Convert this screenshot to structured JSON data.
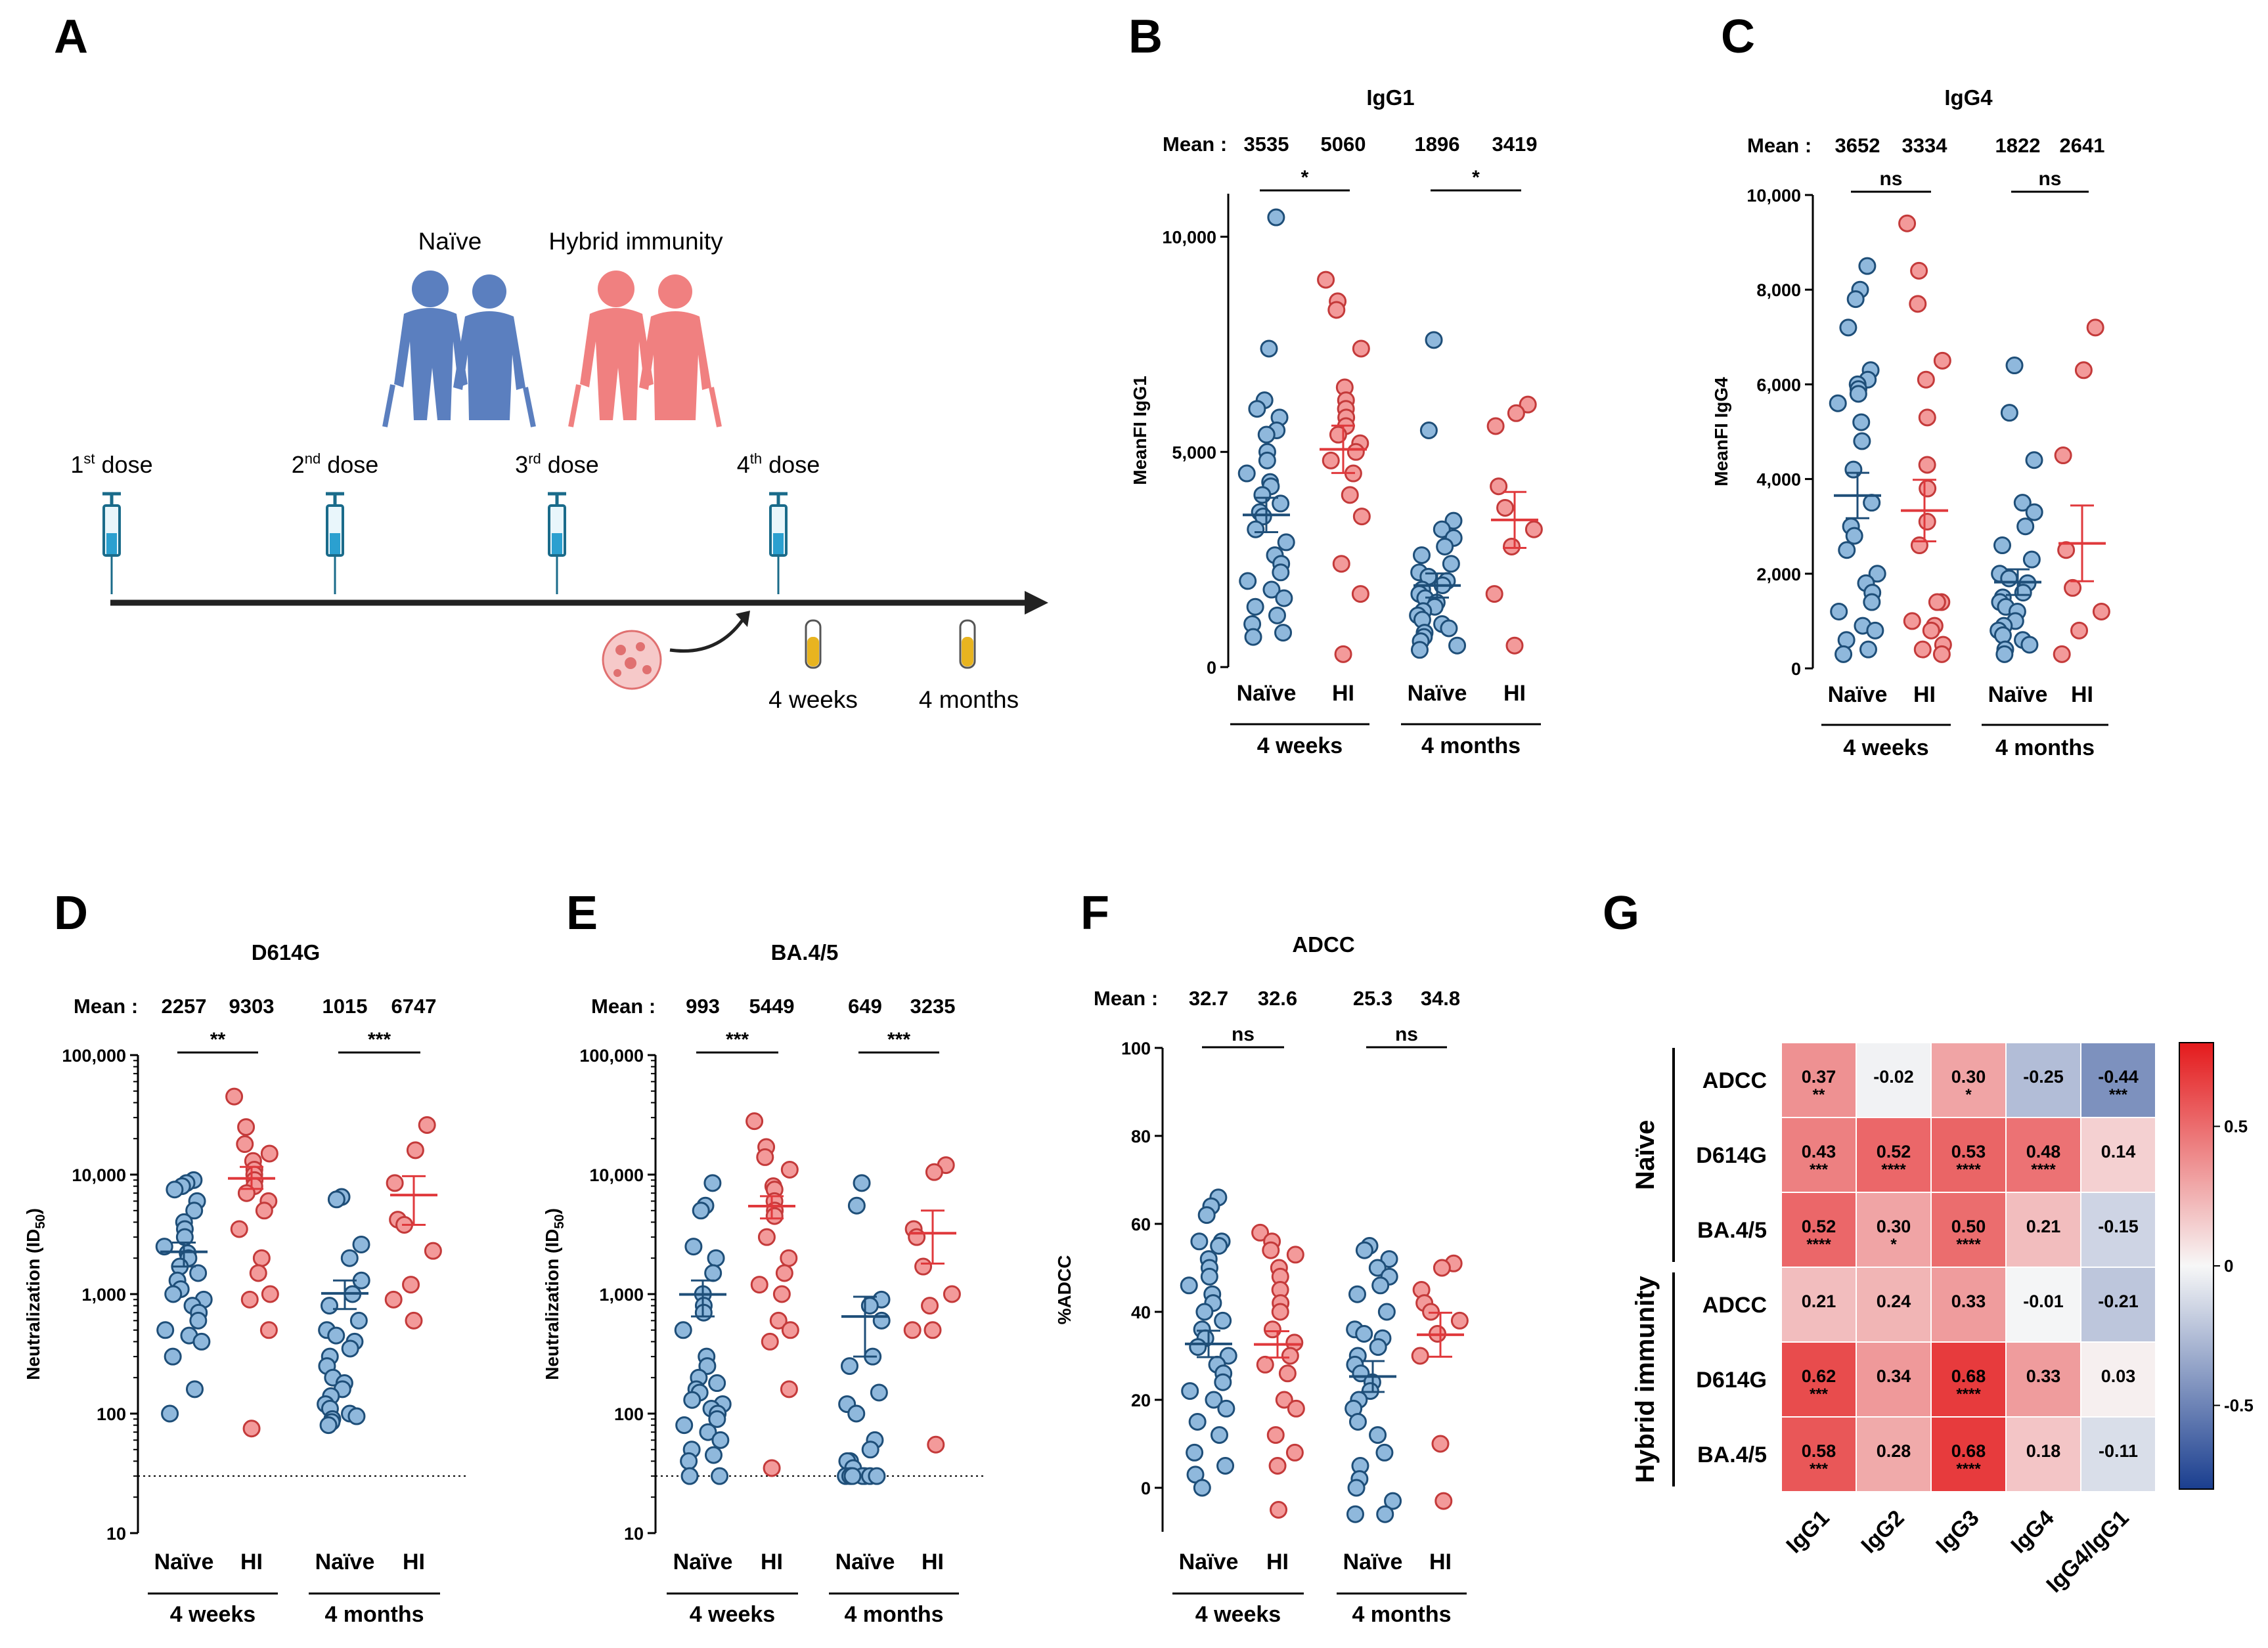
{
  "figure": {
    "panels": [
      "A",
      "B",
      "C",
      "D",
      "E",
      "F",
      "G"
    ]
  },
  "schematic": {
    "labels": {
      "naive": "Naïve",
      "hybrid": "Hybrid immunity",
      "d1": "1st dose",
      "d2": "2nd dose",
      "d3": "3rd dose",
      "d4": "4th dose",
      "weeks": "4 weeks",
      "months": "4 months"
    },
    "dose_labels": [
      {
        "base": "1",
        "sup": "st",
        "rest": " dose"
      },
      {
        "base": "2",
        "sup": "nd",
        "rest": " dose"
      },
      {
        "base": "3",
        "sup": "rd",
        "rest": " dose"
      },
      {
        "base": "4",
        "sup": "th",
        "rest": " dose"
      }
    ],
    "colors": {
      "naive": "#5b7fbf",
      "hybrid": "#f08080",
      "syringe": "#1a6b8a",
      "tube": "#e8b420"
    }
  },
  "chart_data": [
    {
      "id": "B",
      "type": "scatter",
      "scale": "linear",
      "title": "IgG1",
      "ylabel": "MeanFI IgG1",
      "ylim": [
        0,
        11000
      ],
      "yticks": [
        0,
        5000,
        10000
      ],
      "yticklabels": [
        "0",
        "5,000",
        "10,000"
      ],
      "groups": [
        "Naïve",
        "HI",
        "Naïve",
        "HI"
      ],
      "timepoints": [
        "4 weeks",
        "4 months"
      ],
      "mean_label": "Mean :",
      "means": [
        "3535",
        "5060",
        "1896",
        "3419"
      ],
      "sig": [
        "*",
        "*"
      ],
      "series": [
        {
          "name": "Naïve",
          "timepoint": "4 weeks",
          "mean": 3535,
          "sem": 400,
          "values": [
            10450,
            7400,
            6200,
            6000,
            5800,
            5500,
            5400,
            5000,
            4800,
            4500,
            4300,
            4200,
            4000,
            3800,
            3600,
            3500,
            3200,
            2900,
            2600,
            2400,
            2200,
            2000,
            1800,
            1600,
            1400,
            1200,
            1000,
            800,
            700
          ]
        },
        {
          "name": "HI",
          "timepoint": "4 weeks",
          "mean": 5060,
          "sem": 550,
          "values": [
            9000,
            8500,
            8300,
            7400,
            6500,
            6200,
            6000,
            5800,
            5600,
            5400,
            5200,
            5000,
            4800,
            4500,
            4000,
            3500,
            2400,
            1700,
            300
          ]
        },
        {
          "name": "Naïve",
          "timepoint": "4 months",
          "mean": 1896,
          "sem": 280,
          "values": [
            7600,
            5500,
            3400,
            3200,
            3000,
            2800,
            2600,
            2400,
            2200,
            2100,
            2000,
            1900,
            1800,
            1700,
            1600,
            1500,
            1400,
            1300,
            1200,
            1100,
            1000,
            900,
            800,
            700,
            600,
            500,
            400
          ]
        },
        {
          "name": "HI",
          "timepoint": "4 months",
          "mean": 3419,
          "sem": 650,
          "values": [
            6100,
            5900,
            5600,
            4200,
            3700,
            3200,
            2800,
            1700,
            500
          ]
        }
      ]
    },
    {
      "id": "C",
      "type": "scatter",
      "scale": "linear",
      "title": "IgG4",
      "ylabel": "MeanFI IgG4",
      "ylim": [
        0,
        10000
      ],
      "yticks": [
        0,
        2000,
        4000,
        6000,
        8000,
        10000
      ],
      "yticklabels": [
        "0",
        "2,000",
        "4,000",
        "6,000",
        "8,000",
        "10,000"
      ],
      "groups": [
        "Naïve",
        "HI",
        "Naïve",
        "HI"
      ],
      "timepoints": [
        "4 weeks",
        "4 months"
      ],
      "mean_label": "Mean :",
      "means": [
        "3652",
        "3334",
        "1822",
        "2641"
      ],
      "sig": [
        "ns",
        "ns"
      ],
      "series": [
        {
          "name": "Naïve",
          "timepoint": "4 weeks",
          "mean": 3652,
          "sem": 480,
          "values": [
            8500,
            8000,
            7800,
            7200,
            6300,
            6100,
            6000,
            5900,
            5800,
            5600,
            5200,
            4800,
            4200,
            3500,
            3000,
            2800,
            2500,
            2000,
            1800,
            1600,
            1400,
            1200,
            900,
            800,
            600,
            400,
            300
          ]
        },
        {
          "name": "HI",
          "timepoint": "4 weeks",
          "mean": 3334,
          "sem": 650,
          "values": [
            9400,
            8400,
            7700,
            6500,
            6100,
            5300,
            4300,
            3800,
            3100,
            2600,
            1400,
            1400,
            1000,
            900,
            800,
            500,
            400,
            300
          ]
        },
        {
          "name": "Naïve",
          "timepoint": "4 months",
          "mean": 1822,
          "sem": 270,
          "values": [
            6400,
            5400,
            4400,
            3500,
            3300,
            3000,
            2600,
            2300,
            2000,
            1900,
            1800,
            1600,
            1500,
            1400,
            1300,
            1200,
            1000,
            900,
            800,
            700,
            600,
            500,
            400,
            300
          ]
        },
        {
          "name": "HI",
          "timepoint": "4 months",
          "mean": 2641,
          "sem": 800,
          "values": [
            7200,
            6300,
            4500,
            2500,
            1700,
            1200,
            800,
            300
          ]
        }
      ]
    },
    {
      "id": "D",
      "type": "scatter",
      "scale": "log",
      "title": "D614G",
      "ylabel": "Neutralization (ID50)",
      "ylim": [
        10,
        100000
      ],
      "yticks": [
        10,
        100,
        1000,
        10000,
        100000
      ],
      "yticklabels": [
        "10",
        "100",
        "1,000",
        "10,000",
        "100,000"
      ],
      "threshold": 30,
      "groups": [
        "Naïve",
        "HI",
        "Naïve",
        "HI"
      ],
      "timepoints": [
        "4 weeks",
        "4 months"
      ],
      "mean_label": "Mean :",
      "means": [
        "2257",
        "9303",
        "1015",
        "6747"
      ],
      "sig": [
        "**",
        "***"
      ],
      "series": [
        {
          "name": "Naïve",
          "timepoint": "4 weeks",
          "mean": 2257,
          "sem_low": 1700,
          "sem_high": 2700,
          "values": [
            9000,
            8500,
            8000,
            7500,
            6000,
            5000,
            4000,
            3500,
            3000,
            2500,
            2200,
            2000,
            1700,
            1500,
            1300,
            1100,
            1000,
            900,
            800,
            700,
            600,
            500,
            450,
            400,
            300,
            160,
            100
          ]
        },
        {
          "name": "HI",
          "timepoint": "4 weeks",
          "mean": 9303,
          "sem_low": 7600,
          "sem_high": 11600,
          "values": [
            45000,
            25000,
            18000,
            15000,
            13000,
            11000,
            10000,
            9000,
            8000,
            7000,
            6000,
            5000,
            3500,
            2000,
            1500,
            1000,
            900,
            500,
            75
          ]
        },
        {
          "name": "Naïve",
          "timepoint": "4 months",
          "mean": 1015,
          "sem_low": 750,
          "sem_high": 1300,
          "values": [
            6500,
            6200,
            2600,
            2000,
            1300,
            1000,
            800,
            600,
            500,
            450,
            400,
            350,
            300,
            250,
            200,
            180,
            160,
            140,
            120,
            110,
            100,
            95,
            90,
            85,
            80
          ]
        },
        {
          "name": "HI",
          "timepoint": "4 months",
          "mean": 6747,
          "sem_low": 3800,
          "sem_high": 9700,
          "values": [
            26000,
            16000,
            8500,
            4200,
            3800,
            2300,
            1200,
            900,
            600
          ]
        }
      ]
    },
    {
      "id": "E",
      "type": "scatter",
      "scale": "log",
      "title": "BA.4/5",
      "ylabel": "Neutralization (ID50)",
      "ylim": [
        10,
        100000
      ],
      "yticks": [
        10,
        100,
        1000,
        10000,
        100000
      ],
      "yticklabels": [
        "10",
        "100",
        "1,000",
        "10,000",
        "100,000"
      ],
      "threshold": 30,
      "groups": [
        "Naïve",
        "HI",
        "Naïve",
        "HI"
      ],
      "timepoints": [
        "4 weeks",
        "4 months"
      ],
      "mean_label": "Mean :",
      "means": [
        "993",
        "5449",
        "649",
        "3235"
      ],
      "sig": [
        "***",
        "***"
      ],
      "series": [
        {
          "name": "Naïve",
          "timepoint": "4 weeks",
          "mean": 993,
          "sem_low": 650,
          "sem_high": 1300,
          "values": [
            8500,
            5500,
            5000,
            2500,
            2000,
            1500,
            1000,
            800,
            700,
            500,
            300,
            250,
            200,
            180,
            160,
            150,
            130,
            120,
            110,
            100,
            90,
            80,
            70,
            60,
            50,
            45,
            40,
            30,
            30
          ]
        },
        {
          "name": "HI",
          "timepoint": "4 weeks",
          "mean": 5449,
          "sem_low": 4300,
          "sem_high": 6600,
          "values": [
            28000,
            17000,
            14000,
            11000,
            8000,
            7500,
            6000,
            5000,
            4500,
            3000,
            2000,
            1500,
            1200,
            1000,
            600,
            500,
            400,
            160,
            35
          ]
        },
        {
          "name": "Naïve",
          "timepoint": "4 months",
          "mean": 649,
          "sem_low": 300,
          "sem_high": 950,
          "values": [
            8500,
            5500,
            900,
            800,
            600,
            300,
            250,
            150,
            120,
            100,
            60,
            50,
            40,
            40,
            35,
            30,
            30,
            30,
            30,
            30,
            30,
            30,
            30
          ]
        },
        {
          "name": "HI",
          "timepoint": "4 months",
          "mean": 3235,
          "sem_low": 1800,
          "sem_high": 5000,
          "values": [
            12000,
            10500,
            3500,
            3000,
            1700,
            1000,
            800,
            500,
            500,
            55
          ]
        }
      ]
    },
    {
      "id": "F",
      "type": "scatter",
      "scale": "linear",
      "title": "ADCC",
      "ylabel": "%ADCC",
      "ylim": [
        -10,
        100
      ],
      "yticks": [
        0,
        20,
        40,
        60,
        80,
        100
      ],
      "yticklabels": [
        "0",
        "20",
        "40",
        "60",
        "80",
        "100"
      ],
      "groups": [
        "Naïve",
        "HI",
        "Naïve",
        "HI"
      ],
      "timepoints": [
        "4 weeks",
        "4 months"
      ],
      "mean_label": "Mean :",
      "means": [
        "32.7",
        "32.6",
        "25.3",
        "34.8"
      ],
      "sig": [
        "ns",
        "ns"
      ],
      "series": [
        {
          "name": "Naïve",
          "timepoint": "4 weeks",
          "mean": 32.7,
          "sem": 3,
          "values": [
            66,
            64,
            62,
            56,
            56,
            55,
            52,
            50,
            48,
            46,
            44,
            42,
            40,
            38,
            36,
            34,
            32,
            30,
            28,
            26,
            24,
            22,
            20,
            18,
            15,
            12,
            8,
            5,
            3,
            0
          ]
        },
        {
          "name": "HI",
          "timepoint": "4 weeks",
          "mean": 32.6,
          "sem": 3,
          "values": [
            58,
            56,
            54,
            53,
            50,
            48,
            45,
            42,
            40,
            36,
            33,
            30,
            28,
            26,
            20,
            18,
            12,
            8,
            5,
            -5
          ]
        },
        {
          "name": "Naïve",
          "timepoint": "4 months",
          "mean": 25.3,
          "sem": 3.5,
          "values": [
            55,
            54,
            52,
            50,
            48,
            46,
            44,
            40,
            36,
            35,
            34,
            32,
            30,
            28,
            26,
            24,
            22,
            20,
            18,
            15,
            12,
            8,
            5,
            2,
            0,
            -3,
            -6,
            -6
          ]
        },
        {
          "name": "HI",
          "timepoint": "4 months",
          "mean": 34.8,
          "sem": 5,
          "values": [
            51,
            50,
            45,
            42,
            40,
            38,
            35,
            30,
            10,
            -3
          ]
        }
      ]
    },
    {
      "id": "G",
      "type": "heatmap",
      "columns": [
        "IgG1",
        "IgG2",
        "IgG3",
        "IgG4",
        "IgG4/IgG1"
      ],
      "row_groups": [
        "Naïve",
        "Hybrid immunity"
      ],
      "rows": [
        "ADCC",
        "D614G",
        "BA.4/5",
        "ADCC",
        "D614G",
        "BA.4/5"
      ],
      "values": [
        [
          0.37,
          -0.02,
          0.3,
          -0.25,
          -0.44
        ],
        [
          0.43,
          0.52,
          0.53,
          0.48,
          0.14
        ],
        [
          0.52,
          0.3,
          0.5,
          0.21,
          -0.15
        ],
        [
          0.21,
          0.24,
          0.33,
          -0.01,
          -0.21
        ],
        [
          0.62,
          0.34,
          0.68,
          0.33,
          0.03
        ],
        [
          0.58,
          0.28,
          0.68,
          0.18,
          -0.11
        ]
      ],
      "value_labels": [
        [
          "0.37",
          "-0.02",
          "0.30",
          "-0.25",
          "-0.44"
        ],
        [
          "0.43",
          "0.52",
          "0.53",
          "0.48",
          "0.14"
        ],
        [
          "0.52",
          "0.30",
          "0.50",
          "0.21",
          "-0.15"
        ],
        [
          "0.21",
          "0.24",
          "0.33",
          "-0.01",
          "-0.21"
        ],
        [
          "0.62",
          "0.34",
          "0.68",
          "0.33",
          "0.03"
        ],
        [
          "0.58",
          "0.28",
          "0.68",
          "0.18",
          "-0.11"
        ]
      ],
      "stars": [
        [
          "**",
          "",
          "*",
          "",
          "***"
        ],
        [
          "***",
          "****",
          "****",
          "****",
          ""
        ],
        [
          "****",
          "*",
          "****",
          "",
          ""
        ],
        [
          "",
          "",
          "",
          "",
          ""
        ],
        [
          "***",
          "",
          "****",
          "",
          ""
        ],
        [
          "***",
          "",
          "****",
          "",
          ""
        ]
      ],
      "colorbar": {
        "min": -0.8,
        "max": 0.8,
        "ticks": [
          0.5,
          0,
          -0.5
        ],
        "ticklabels": [
          "0.5",
          "0",
          "-0.5"
        ]
      }
    }
  ],
  "colors": {
    "naive_fill": "#8fb8dc",
    "naive_stroke": "#1e4e78",
    "hi_fill": "#f39a9a",
    "hi_stroke": "#c43a3a",
    "naive_mean": "#1e4e78",
    "hi_mean": "#e0393c",
    "heat_pos": "#e41a1c",
    "heat_neg": "#1a3e8f"
  }
}
